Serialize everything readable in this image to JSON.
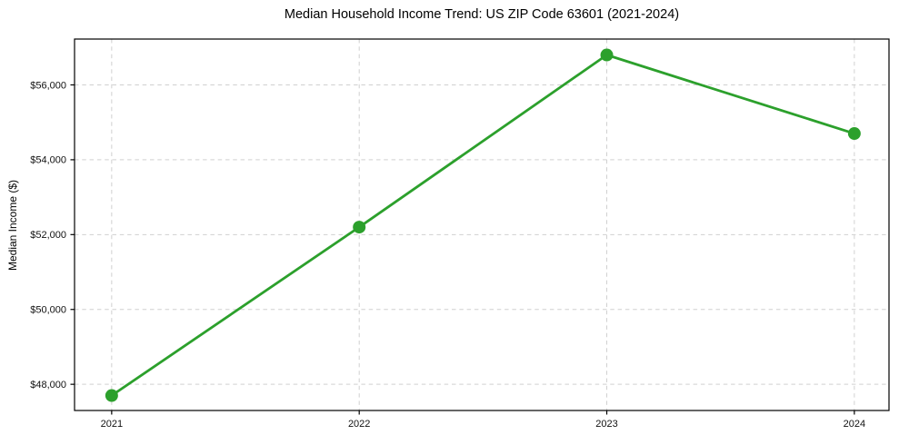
{
  "chart_data": {
    "type": "line",
    "title": "Median Household Income Trend: US ZIP Code 63601 (2021-2024)",
    "xlabel": "",
    "ylabel": "Median Income ($)",
    "x": [
      2021,
      2022,
      2023,
      2024
    ],
    "x_tick_labels": [
      "2021",
      "2022",
      "2023",
      "2024"
    ],
    "series": [
      {
        "values": [
          47700,
          52200,
          56800,
          54700
        ],
        "color": "#2ca02c",
        "marker": "circle",
        "marker_radius": 7,
        "line_width": 2.8
      }
    ],
    "xlim": [
      2020.85,
      2024.14
    ],
    "ylim": [
      47300,
      57225
    ],
    "yticks": [
      48000,
      50000,
      52000,
      54000,
      56000
    ],
    "y_tick_labels": [
      "$48,000",
      "$50,000",
      "$52,000",
      "$54,000",
      "$56,000"
    ],
    "grid": true,
    "grid_style": "dashed",
    "grid_color": "#d0d0d0",
    "axis_color": "#000000",
    "background": "#ffffff",
    "legend": "none"
  }
}
